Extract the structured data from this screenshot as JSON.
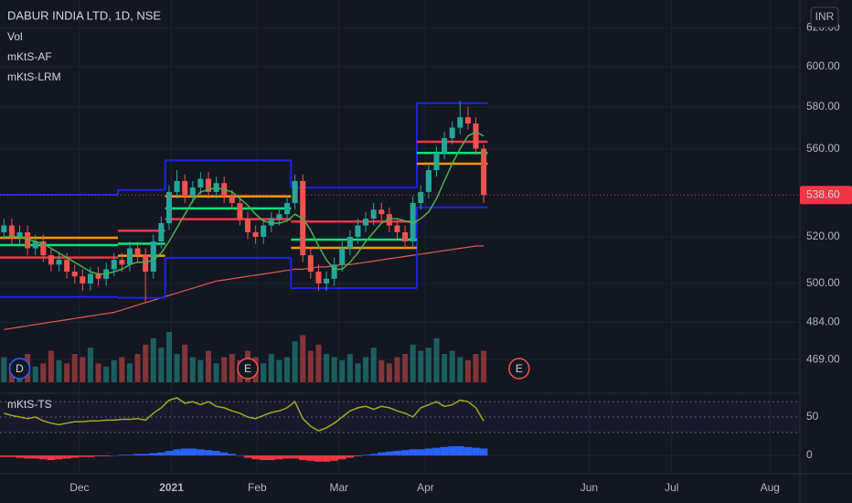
{
  "chart_data": {
    "type": "candlestick",
    "title": "DABUR INDIA LTD, 1D, NSE",
    "currency": "INR",
    "indicator_labels": [
      "Vol",
      "mKtS-AF",
      "mKtS-LRM"
    ],
    "log_scale": true,
    "grid": true,
    "up_color": "#26a69a",
    "down_color": "#ef5350",
    "xlim": [
      -0.5,
      101.2
    ],
    "xticks": [
      {
        "value": 9.6,
        "label": "Dec"
      },
      {
        "value": 21.3,
        "label": "2021"
      },
      {
        "value": 32.2,
        "label": "Feb"
      },
      {
        "value": 42.6,
        "label": "Mar"
      },
      {
        "value": 53.6,
        "label": "Apr"
      },
      {
        "value": 74.4,
        "label": "Jun"
      },
      {
        "value": 84.9,
        "label": "Jul"
      },
      {
        "value": 97.4,
        "label": "Aug"
      }
    ],
    "ylim": [
      455.9,
      634.6
    ],
    "yticks": [
      {
        "value": 620,
        "label": "620.00"
      },
      {
        "value": 600,
        "label": "600.00"
      },
      {
        "value": 580,
        "label": "580.00"
      },
      {
        "value": 560,
        "label": "560.00"
      },
      {
        "value": 520,
        "label": "520.00"
      },
      {
        "value": 500,
        "label": "500.00"
      },
      {
        "value": 484,
        "label": "484.00"
      },
      {
        "value": 469,
        "label": "469.00"
      }
    ],
    "last_price": {
      "value": 538.6,
      "label": "538.60",
      "color": "#f23645"
    },
    "open": [
      522,
      525,
      520,
      522,
      515,
      518,
      512,
      508,
      510,
      505,
      503,
      500,
      504,
      502,
      506,
      510,
      508,
      515,
      512,
      505,
      518,
      526,
      540,
      545,
      538,
      542,
      546,
      540,
      544,
      538,
      535,
      528,
      522,
      520,
      525,
      528,
      530,
      535,
      545,
      512,
      505,
      500,
      502,
      508,
      515,
      520,
      525,
      528,
      532,
      530,
      525,
      522,
      518,
      535,
      540,
      550,
      558,
      565,
      570,
      575,
      572,
      560
    ],
    "high": [
      528,
      528,
      525,
      525,
      521,
      521,
      515,
      513,
      513,
      508,
      506,
      507,
      507,
      509,
      513,
      513,
      518,
      518,
      515,
      521,
      529,
      543,
      550,
      548,
      545,
      549,
      549,
      547,
      547,
      541,
      538,
      531,
      525,
      528,
      531,
      533,
      538,
      548,
      548,
      515,
      508,
      505,
      511,
      518,
      523,
      528,
      531,
      535,
      535,
      533,
      528,
      525,
      538,
      543,
      553,
      561,
      568,
      573,
      583,
      580,
      575,
      562
    ],
    "low": [
      519,
      517,
      517,
      512,
      512,
      509,
      505,
      505,
      502,
      500,
      497,
      497,
      499,
      499,
      503,
      505,
      505,
      509,
      492,
      502,
      515,
      523,
      537,
      535,
      535,
      539,
      537,
      537,
      535,
      532,
      525,
      519,
      517,
      517,
      522,
      525,
      527,
      532,
      509,
      502,
      497,
      497,
      499,
      505,
      512,
      517,
      522,
      525,
      527,
      522,
      519,
      515,
      515,
      532,
      537,
      547,
      555,
      562,
      567,
      569,
      557,
      535
    ],
    "close": [
      525,
      520,
      522,
      515,
      518,
      512,
      508,
      510,
      505,
      503,
      500,
      504,
      502,
      506,
      510,
      508,
      515,
      512,
      505,
      518,
      526,
      540,
      545,
      538,
      542,
      546,
      540,
      544,
      538,
      535,
      528,
      522,
      520,
      525,
      528,
      530,
      535,
      545,
      512,
      505,
      500,
      502,
      508,
      515,
      520,
      525,
      528,
      532,
      530,
      525,
      522,
      518,
      535,
      540,
      550,
      558,
      565,
      570,
      575,
      572,
      560,
      538.6
    ],
    "volume": [
      40,
      30,
      35,
      45,
      25,
      30,
      50,
      35,
      30,
      45,
      40,
      55,
      30,
      25,
      35,
      40,
      30,
      45,
      60,
      70,
      55,
      80,
      45,
      60,
      40,
      35,
      50,
      30,
      40,
      45,
      35,
      50,
      40,
      30,
      45,
      35,
      40,
      65,
      75,
      50,
      60,
      45,
      40,
      35,
      45,
      30,
      40,
      55,
      35,
      30,
      40,
      45,
      60,
      50,
      55,
      70,
      45,
      50,
      40,
      35,
      45,
      50
    ],
    "ma_short": {
      "color": "#4caf50",
      "values": [
        520,
        520,
        520,
        519,
        518,
        517,
        515,
        513,
        511,
        509,
        507,
        505,
        504,
        504,
        505,
        506,
        508,
        509,
        509,
        510,
        513,
        518,
        524,
        530,
        536,
        540,
        541,
        542,
        541,
        540,
        537,
        534,
        530,
        527,
        526,
        526,
        527,
        530,
        528,
        523,
        516,
        510,
        506,
        506,
        509,
        513,
        518,
        522,
        526,
        528,
        528,
        527,
        526,
        528,
        531,
        537,
        545,
        553,
        560,
        566,
        568,
        566
      ]
    },
    "ma_long": {
      "color": "#e05a50",
      "values": [
        481,
        481.5,
        482,
        482.5,
        483,
        483.5,
        484,
        484.5,
        485,
        485.5,
        486,
        486.5,
        487,
        487.5,
        488,
        489,
        490,
        491,
        492,
        493,
        494,
        495,
        496,
        497,
        498,
        499,
        500,
        501,
        501.5,
        502,
        502.5,
        503,
        503.5,
        504,
        504.5,
        505,
        505.5,
        506,
        506,
        506.5,
        507,
        507,
        507.5,
        508,
        508,
        508.5,
        509,
        509.5,
        510,
        510.5,
        511,
        511.5,
        512,
        512.5,
        513,
        513.5,
        514,
        514.5,
        515,
        515.5,
        516,
        516
      ]
    },
    "channel": {
      "color": "#1e22e6",
      "segments": [
        {
          "start": 0,
          "end": 14,
          "upper": 538.7,
          "lower": 494.4
        },
        {
          "start": 15,
          "end": 20,
          "upper": 540.9,
          "lower": 494
        },
        {
          "start": 21,
          "end": 36,
          "upper": 554.5,
          "lower": 510.9
        },
        {
          "start": 37,
          "end": 52,
          "upper": 542,
          "lower": 498
        },
        {
          "start": 53,
          "end": 61,
          "upper": 581.9,
          "lower": 533.1
        }
      ]
    },
    "levels": [
      {
        "start": 0,
        "end": 14,
        "value": 519.6,
        "color": "#ff9800"
      },
      {
        "start": 0,
        "end": 14,
        "value": 516.4,
        "color": "#00e676"
      },
      {
        "start": 0,
        "end": 14,
        "value": 511,
        "color": "#f23645"
      },
      {
        "start": 15,
        "end": 20,
        "value": 522.7,
        "color": "#f23645"
      },
      {
        "start": 15,
        "end": 20,
        "value": 517,
        "color": "#00e676"
      },
      {
        "start": 15,
        "end": 20,
        "value": 511.8,
        "color": "#ff9800"
      },
      {
        "start": 21,
        "end": 36,
        "value": 538,
        "color": "#ff9800"
      },
      {
        "start": 21,
        "end": 36,
        "value": 532.6,
        "color": "#00e676"
      },
      {
        "start": 21,
        "end": 36,
        "value": 527.8,
        "color": "#f23645"
      },
      {
        "start": 37,
        "end": 52,
        "value": 526.7,
        "color": "#f23645"
      },
      {
        "start": 37,
        "end": 52,
        "value": 518.8,
        "color": "#00e676"
      },
      {
        "start": 37,
        "end": 52,
        "value": 515.2,
        "color": "#ff9800"
      },
      {
        "start": 53,
        "end": 61,
        "value": 563.3,
        "color": "#f23645"
      },
      {
        "start": 53,
        "end": 61,
        "value": 558,
        "color": "#00e676"
      },
      {
        "start": 53,
        "end": 61,
        "value": 553,
        "color": "#ff9800"
      }
    ],
    "events": [
      {
        "label": "D",
        "x": 2,
        "color": "#2962ff"
      },
      {
        "label": "E",
        "x": 31,
        "color": "#ef5350"
      },
      {
        "label": "E",
        "x": 65.5,
        "color": "#ef5350"
      }
    ],
    "oscillator": {
      "name": "mKtS-TS",
      "color": "#9fa81e",
      "ylim": [
        -20.2,
        78.6
      ],
      "yticks": [
        50,
        0
      ],
      "bands": [
        30,
        70
      ],
      "values": [
        55,
        52,
        50,
        48,
        50,
        45,
        42,
        40,
        42,
        44,
        44,
        45,
        45,
        46,
        46,
        47,
        47,
        48,
        46,
        55,
        62,
        72,
        75,
        68,
        70,
        66,
        70,
        64,
        62,
        58,
        55,
        50,
        48,
        52,
        56,
        58,
        62,
        70,
        48,
        38,
        32,
        36,
        42,
        50,
        58,
        62,
        64,
        60,
        64,
        62,
        58,
        55,
        50,
        62,
        66,
        70,
        64,
        66,
        72,
        70,
        62,
        45
      ],
      "histogram": [
        -2,
        -2,
        -3,
        -4,
        -4,
        -5,
        -6,
        -5,
        -4,
        -3,
        -2,
        -2,
        -1,
        -1,
        0,
        1,
        1,
        2,
        2,
        3,
        4,
        6,
        8,
        9,
        9,
        8,
        7,
        6,
        4,
        2,
        0,
        -3,
        -5,
        -6,
        -6,
        -5,
        -4,
        -4,
        -6,
        -7,
        -8,
        -8,
        -7,
        -5,
        -3,
        -1,
        1,
        2,
        4,
        5,
        6,
        7,
        8,
        8,
        9,
        10,
        11,
        12,
        12,
        11,
        10,
        9
      ],
      "histogram_colors": {
        "positive": "#2962ff",
        "negative": "#f23645"
      }
    }
  }
}
